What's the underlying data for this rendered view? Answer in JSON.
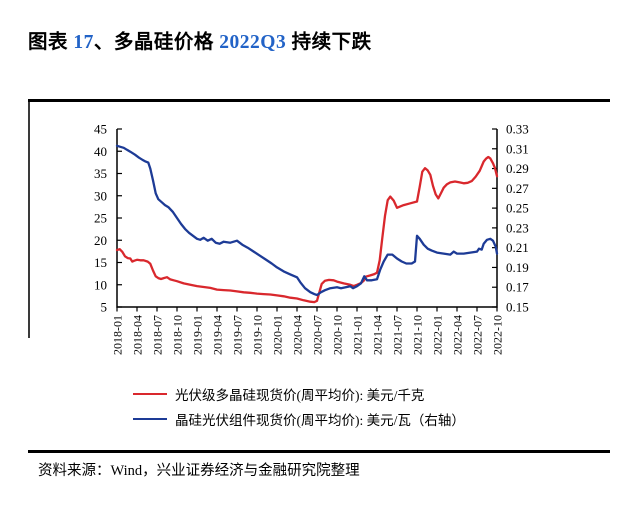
{
  "title": {
    "parts": [
      "图表 ",
      "17",
      "、多晶硅价格 ",
      "2022Q3",
      " 持续下跌"
    ]
  },
  "source": {
    "label": "资料来源：Wind，兴业证券经济与金融研究院整理"
  },
  "colors": {
    "red": "#d9282d",
    "blue": "#1d3b96",
    "title_number_blue": "#2263c7",
    "axis": "#000000"
  },
  "chart_data": {
    "type": "line",
    "title": "多晶硅价格 2022Q3 持续下跌",
    "grid": false,
    "legend_position": "bottom",
    "x_axis": {
      "unit": "year-month, quarterly ticks, weekly data",
      "tick_labels": [
        "2018-01",
        "2018-04",
        "2018-07",
        "2018-10",
        "2019-01",
        "2019-04",
        "2019-07",
        "2019-10",
        "2020-01",
        "2020-04",
        "2020-07",
        "2020-10",
        "2021-01",
        "2021-04",
        "2021-07",
        "2021-10",
        "2022-01",
        "2022-04",
        "2022-07",
        "2022-10"
      ],
      "months_span": 57
    },
    "left_axis": {
      "min": 5,
      "max": 45,
      "step": 5,
      "labels": [
        "5",
        "10",
        "15",
        "20",
        "25",
        "30",
        "35",
        "40",
        "45"
      ]
    },
    "right_axis": {
      "min": 0.15,
      "max": 0.33,
      "step": 0.02,
      "labels": [
        "0.15",
        "0.17",
        "0.19",
        "0.21",
        "0.23",
        "0.25",
        "0.27",
        "0.29",
        "0.31",
        "0.33"
      ]
    },
    "series": [
      {
        "name": "光伏级多晶硅现货价(周平均价):  美元/千克",
        "axis": "left",
        "color_key": "red",
        "points": [
          [
            0,
            17.8
          ],
          [
            0.4,
            18.0
          ],
          [
            0.8,
            17.4
          ],
          [
            1.2,
            16.4
          ],
          [
            1.6,
            16.0
          ],
          [
            2,
            15.9
          ],
          [
            2.3,
            15.2
          ],
          [
            2.6,
            15.4
          ],
          [
            3,
            15.6
          ],
          [
            3.5,
            15.5
          ],
          [
            4,
            15.5
          ],
          [
            4.6,
            15.2
          ],
          [
            5,
            14.7
          ],
          [
            5.4,
            13.2
          ],
          [
            5.8,
            11.9
          ],
          [
            6.2,
            11.5
          ],
          [
            6.6,
            11.3
          ],
          [
            7,
            11.5
          ],
          [
            7.5,
            11.7
          ],
          [
            8,
            11.2
          ],
          [
            8.5,
            11.0
          ],
          [
            9,
            10.8
          ],
          [
            10,
            10.3
          ],
          [
            11,
            10.0
          ],
          [
            12,
            9.7
          ],
          [
            13,
            9.5
          ],
          [
            14,
            9.3
          ],
          [
            15,
            8.9
          ],
          [
            16,
            8.8
          ],
          [
            17,
            8.7
          ],
          [
            18,
            8.5
          ],
          [
            19,
            8.3
          ],
          [
            20,
            8.2
          ],
          [
            21,
            8.0
          ],
          [
            22,
            7.9
          ],
          [
            23,
            7.8
          ],
          [
            24,
            7.6
          ],
          [
            25,
            7.4
          ],
          [
            26,
            7.1
          ],
          [
            27,
            6.9
          ],
          [
            28,
            6.5
          ],
          [
            29,
            6.2
          ],
          [
            29.6,
            6.1
          ],
          [
            30,
            6.4
          ],
          [
            30.3,
            8.0
          ],
          [
            30.7,
            10.2
          ],
          [
            31.2,
            10.9
          ],
          [
            31.8,
            11.1
          ],
          [
            32.5,
            11.0
          ],
          [
            33,
            10.7
          ],
          [
            34,
            10.3
          ],
          [
            35,
            10.0
          ],
          [
            35.5,
            9.7
          ],
          [
            36,
            10.0
          ],
          [
            36.6,
            10.4
          ],
          [
            37,
            10.9
          ],
          [
            37.3,
            11.8
          ],
          [
            38,
            12.1
          ],
          [
            38.6,
            12.4
          ],
          [
            39,
            12.7
          ],
          [
            39.4,
            15.5
          ],
          [
            39.8,
            20.5
          ],
          [
            40.2,
            25.5
          ],
          [
            40.6,
            29.0
          ],
          [
            41,
            29.8
          ],
          [
            41.5,
            28.9
          ],
          [
            42,
            27.3
          ],
          [
            42.5,
            27.6
          ],
          [
            43,
            27.9
          ],
          [
            44,
            28.3
          ],
          [
            45,
            28.7
          ],
          [
            45.4,
            32.0
          ],
          [
            45.8,
            35.4
          ],
          [
            46.2,
            36.2
          ],
          [
            46.6,
            35.7
          ],
          [
            47,
            34.7
          ],
          [
            47.4,
            32.2
          ],
          [
            47.8,
            30.3
          ],
          [
            48.2,
            29.4
          ],
          [
            48.6,
            30.6
          ],
          [
            49,
            31.8
          ],
          [
            49.5,
            32.6
          ],
          [
            50,
            33.0
          ],
          [
            50.7,
            33.2
          ],
          [
            51.4,
            33.0
          ],
          [
            52,
            32.8
          ],
          [
            52.6,
            32.9
          ],
          [
            53.2,
            33.3
          ],
          [
            53.8,
            34.3
          ],
          [
            54.4,
            35.6
          ],
          [
            55,
            37.7
          ],
          [
            55.4,
            38.4
          ],
          [
            55.7,
            38.7
          ],
          [
            56,
            38.4
          ],
          [
            56.4,
            37.3
          ],
          [
            56.7,
            36.2
          ],
          [
            57,
            34.4
          ]
        ]
      },
      {
        "name": "晶硅光伏组件现货价(周平均价):  美元/瓦（右轴）",
        "axis": "right",
        "color_key": "blue",
        "points": [
          [
            0,
            0.313
          ],
          [
            0.5,
            0.312
          ],
          [
            1,
            0.311
          ],
          [
            1.5,
            0.309
          ],
          [
            2,
            0.307
          ],
          [
            2.7,
            0.304
          ],
          [
            3.3,
            0.301
          ],
          [
            3.8,
            0.299
          ],
          [
            4.3,
            0.297
          ],
          [
            4.7,
            0.296
          ],
          [
            5,
            0.29
          ],
          [
            5.4,
            0.278
          ],
          [
            5.8,
            0.265
          ],
          [
            6.2,
            0.259
          ],
          [
            6.7,
            0.256
          ],
          [
            7.2,
            0.253
          ],
          [
            7.7,
            0.251
          ],
          [
            8.4,
            0.246
          ],
          [
            9,
            0.24
          ],
          [
            9.6,
            0.234
          ],
          [
            10.2,
            0.229
          ],
          [
            10.8,
            0.225
          ],
          [
            11.4,
            0.222
          ],
          [
            12,
            0.219
          ],
          [
            12.5,
            0.218
          ],
          [
            13,
            0.22
          ],
          [
            13.6,
            0.217
          ],
          [
            14.2,
            0.219
          ],
          [
            14.8,
            0.215
          ],
          [
            15.4,
            0.214
          ],
          [
            16,
            0.216
          ],
          [
            17,
            0.215
          ],
          [
            18,
            0.217
          ],
          [
            18.8,
            0.213
          ],
          [
            19.6,
            0.21
          ],
          [
            20.5,
            0.206
          ],
          [
            21.4,
            0.202
          ],
          [
            22.3,
            0.198
          ],
          [
            23.2,
            0.194
          ],
          [
            24,
            0.19
          ],
          [
            25,
            0.186
          ],
          [
            26,
            0.183
          ],
          [
            27,
            0.18
          ],
          [
            27.5,
            0.175
          ],
          [
            28.2,
            0.169
          ],
          [
            29,
            0.165
          ],
          [
            29.6,
            0.163
          ],
          [
            30,
            0.162
          ],
          [
            30.6,
            0.165
          ],
          [
            31.2,
            0.167
          ],
          [
            32,
            0.169
          ],
          [
            33,
            0.17
          ],
          [
            33.6,
            0.169
          ],
          [
            34.3,
            0.17
          ],
          [
            35,
            0.171
          ],
          [
            35.4,
            0.169
          ],
          [
            36,
            0.171
          ],
          [
            36.6,
            0.174
          ],
          [
            37.1,
            0.181
          ],
          [
            37.5,
            0.177
          ],
          [
            38.2,
            0.177
          ],
          [
            39,
            0.178
          ],
          [
            39.5,
            0.188
          ],
          [
            40,
            0.196
          ],
          [
            40.6,
            0.203
          ],
          [
            41.3,
            0.203
          ],
          [
            42,
            0.199
          ],
          [
            42.7,
            0.196
          ],
          [
            43.4,
            0.194
          ],
          [
            44.2,
            0.194
          ],
          [
            44.7,
            0.196
          ],
          [
            45,
            0.222
          ],
          [
            45.4,
            0.219
          ],
          [
            46,
            0.213
          ],
          [
            46.6,
            0.209
          ],
          [
            47.2,
            0.207
          ],
          [
            48,
            0.205
          ],
          [
            49,
            0.204
          ],
          [
            50,
            0.203
          ],
          [
            50.5,
            0.206
          ],
          [
            51,
            0.204
          ],
          [
            52,
            0.204
          ],
          [
            53,
            0.205
          ],
          [
            54,
            0.206
          ],
          [
            54.3,
            0.209
          ],
          [
            54.7,
            0.208
          ],
          [
            55,
            0.214
          ],
          [
            55.5,
            0.218
          ],
          [
            56,
            0.219
          ],
          [
            56.4,
            0.217
          ],
          [
            56.8,
            0.211
          ],
          [
            57,
            0.204
          ]
        ]
      }
    ]
  }
}
